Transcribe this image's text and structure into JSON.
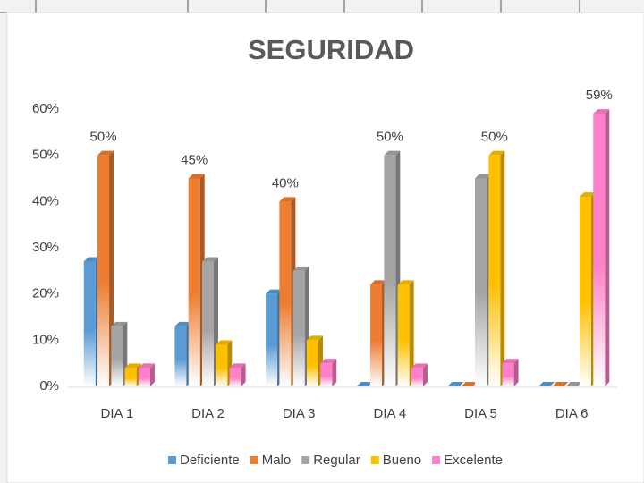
{
  "chart_data": {
    "type": "bar3d",
    "title": "SEGURIDAD",
    "categories": [
      "DIA 1",
      "DIA 2",
      "DIA 3",
      "DIA 4",
      "DIA 5",
      "DIA 6"
    ],
    "series": [
      {
        "name": "Deficiente",
        "color": "#5b9bd5",
        "values": [
          27,
          13,
          20,
          0,
          0,
          0
        ],
        "value_labels": [
          null,
          null,
          null,
          null,
          null,
          null
        ]
      },
      {
        "name": "Malo",
        "color": "#ed7d31",
        "values": [
          50,
          45,
          40,
          22,
          0,
          0
        ],
        "value_labels": [
          "50%",
          "45%",
          "40%",
          null,
          null,
          null
        ]
      },
      {
        "name": "Regular",
        "color": "#a5a5a5",
        "values": [
          13,
          27,
          25,
          50,
          45,
          0
        ],
        "value_labels": [
          null,
          null,
          null,
          "50%",
          null,
          null
        ]
      },
      {
        "name": "Bueno",
        "color": "#ffc000",
        "values": [
          4,
          9,
          10,
          22,
          50,
          41
        ],
        "value_labels": [
          null,
          null,
          null,
          null,
          "50%",
          null
        ]
      },
      {
        "name": "Excelente",
        "color": "#ff7fc8",
        "values": [
          4,
          4,
          5,
          4,
          5,
          59
        ],
        "value_labels": [
          null,
          null,
          null,
          null,
          null,
          "59%"
        ]
      }
    ],
    "ylim": [
      0,
      60
    ],
    "yticks": [
      {
        "value": 0,
        "label": "0%"
      },
      {
        "value": 10,
        "label": "10%"
      },
      {
        "value": 20,
        "label": "20%"
      },
      {
        "value": 30,
        "label": "30%"
      },
      {
        "value": 40,
        "label": "40%"
      },
      {
        "value": 50,
        "label": "50%"
      },
      {
        "value": 60,
        "label": "60%"
      }
    ],
    "grid": false,
    "legend": "bottom"
  }
}
